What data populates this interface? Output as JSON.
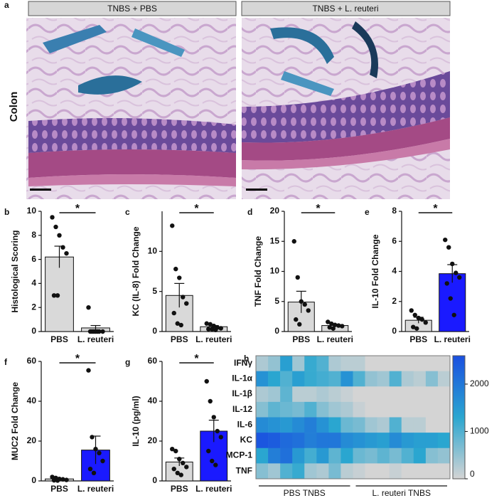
{
  "figure": {
    "panel_label": "a",
    "conditions": [
      "TNBS + PBS",
      "TNBS + L. reuteri"
    ],
    "tissue": "Colon"
  },
  "chart_data": [
    {
      "type": "bar",
      "panel": "b",
      "ylabel": "Histological Scoring",
      "annotation": "*",
      "categories": [
        "PBS",
        "L. reuteri"
      ],
      "values": [
        6.2,
        0.3
      ],
      "errors": [
        0.9,
        0.2
      ],
      "points": [
        [
          9.5,
          8.7,
          8.0,
          7.0,
          6.5,
          3.0,
          3.0
        ],
        [
          2.0,
          0,
          0,
          0,
          0,
          0,
          0,
          0
        ]
      ],
      "colors": [
        "#d9d9d9",
        "#d9d9d9"
      ],
      "ylim": [
        0,
        10
      ],
      "yticks": [
        0,
        2,
        4,
        6,
        8,
        10
      ]
    },
    {
      "type": "bar",
      "panel": "c",
      "ylabel": "KC (IL-8) Fold Change",
      "annotation": "*",
      "categories": [
        "PBS",
        "L. reuteri"
      ],
      "values": [
        4.5,
        0.6
      ],
      "errors": [
        1.5,
        0.15
      ],
      "points": [
        [
          13.2,
          7.8,
          6.7,
          4.3,
          3.5,
          2.3,
          1.0,
          0.8
        ],
        [
          1.0,
          0.9,
          0.7,
          0.5,
          0.4,
          0.3,
          0.3,
          0.2
        ]
      ],
      "colors": [
        "#d9d9d9",
        "#d9d9d9"
      ],
      "ylim": [
        0,
        15
      ],
      "yticks": [
        0,
        5,
        10
      ]
    },
    {
      "type": "bar",
      "panel": "d",
      "ylabel": "TNF Fold Change",
      "annotation": "*",
      "categories": [
        "PBS",
        "L. reuteri"
      ],
      "values": [
        4.9,
        1.0
      ],
      "errors": [
        1.8,
        0.2
      ],
      "points": [
        [
          15.0,
          9.0,
          5.0,
          4.5,
          3.5,
          2.0,
          1.2
        ],
        [
          1.6,
          1.3,
          1.1,
          1.0,
          0.9,
          0.7,
          0.5
        ]
      ],
      "colors": [
        "#d9d9d9",
        "#d9d9d9"
      ],
      "ylim": [
        0,
        20
      ],
      "yticks": [
        0,
        5,
        10,
        15,
        20
      ]
    },
    {
      "type": "bar",
      "panel": "e",
      "ylabel": "IL-10 Fold Change",
      "annotation": "*",
      "categories": [
        "PBS",
        "L. reuteri"
      ],
      "values": [
        0.75,
        3.85
      ],
      "errors": [
        0.2,
        0.6
      ],
      "points": [
        [
          1.4,
          1.1,
          0.9,
          0.8,
          0.6,
          0.3,
          0.2
        ],
        [
          6.1,
          5.6,
          4.5,
          3.9,
          3.6,
          3.2,
          2.2,
          1.1
        ]
      ],
      "colors": [
        "#d9d9d9",
        "#1a1aff"
      ],
      "ylim": [
        0,
        8
      ],
      "yticks": [
        0,
        2,
        4,
        6,
        8
      ]
    },
    {
      "type": "bar",
      "panel": "f",
      "ylabel": "MUC2 Fold Change",
      "annotation": "*",
      "categories": [
        "PBS",
        "L. reuteri"
      ],
      "values": [
        1.0,
        15.5
      ],
      "errors": [
        0.3,
        7.0
      ],
      "points": [
        [
          2.0,
          1.5,
          1.0,
          0.8,
          0.5,
          0.3,
          0.2
        ],
        [
          55.5,
          22.0,
          16.0,
          14.0,
          10.0,
          6.0,
          4.0
        ]
      ],
      "colors": [
        "#d9d9d9",
        "#1a1aff"
      ],
      "ylim": [
        0,
        60
      ],
      "yticks": [
        0,
        20,
        40,
        60
      ]
    },
    {
      "type": "bar",
      "panel": "g",
      "ylabel": "IL-10 (pg/ml)",
      "annotation": "*",
      "categories": [
        "PBS",
        "L. reuteri"
      ],
      "values": [
        9.5,
        25.0
      ],
      "errors": [
        2.0,
        5.5
      ],
      "points": [
        [
          16,
          15,
          11,
          9,
          7,
          6,
          4,
          3
        ],
        [
          50,
          40,
          32,
          25,
          22,
          15,
          10,
          8
        ]
      ],
      "colors": [
        "#d9d9d9",
        "#1a1aff"
      ],
      "ylim": [
        0,
        60
      ],
      "yticks": [
        0,
        20,
        40,
        60
      ]
    },
    {
      "type": "heatmap",
      "panel": "h",
      "rows": [
        "IFNγ",
        "IL-1α",
        "IL-1β",
        "IL-12",
        "IL-6",
        "KC",
        "MCP-1",
        "TNF"
      ],
      "groups": [
        "PBS TNBS",
        "L. reuteri TNBS"
      ],
      "values": [
        [
          300,
          500,
          1400,
          400,
          1200,
          1000,
          300,
          200,
          200,
          0,
          0,
          0,
          0,
          0,
          0,
          0
        ],
        [
          1600,
          1300,
          1000,
          1400,
          1200,
          1100,
          1000,
          1600,
          1000,
          500,
          400,
          1000,
          300,
          200,
          600,
          200
        ],
        [
          300,
          400,
          900,
          200,
          200,
          300,
          200,
          100,
          0,
          0,
          0,
          0,
          0,
          0,
          0,
          0
        ],
        [
          600,
          900,
          800,
          700,
          1000,
          600,
          400,
          300,
          100,
          0,
          0,
          0,
          0,
          0,
          0,
          0
        ],
        [
          1700,
          1600,
          1500,
          1700,
          1900,
          1600,
          1300,
          800,
          700,
          400,
          300,
          1000,
          200,
          200,
          0,
          0
        ],
        [
          2500,
          2400,
          2200,
          2100,
          1900,
          2000,
          2000,
          1700,
          1600,
          1500,
          1400,
          1700,
          1500,
          1400,
          1400,
          1300
        ],
        [
          1300,
          1900,
          2100,
          1500,
          1100,
          1500,
          900,
          1300,
          800,
          700,
          900,
          700,
          1000,
          1300,
          600,
          500
        ],
        [
          600,
          400,
          1000,
          1200,
          400,
          300,
          700,
          200,
          100,
          0,
          0,
          100,
          0,
          0,
          0,
          0
        ]
      ],
      "zlim": [
        0,
        2600
      ],
      "colorbar_ticks": [
        0,
        1000,
        2000
      ],
      "colorscale": [
        "#d4d4d4",
        "#2aa6d0",
        "#1a4fe0"
      ]
    }
  ]
}
